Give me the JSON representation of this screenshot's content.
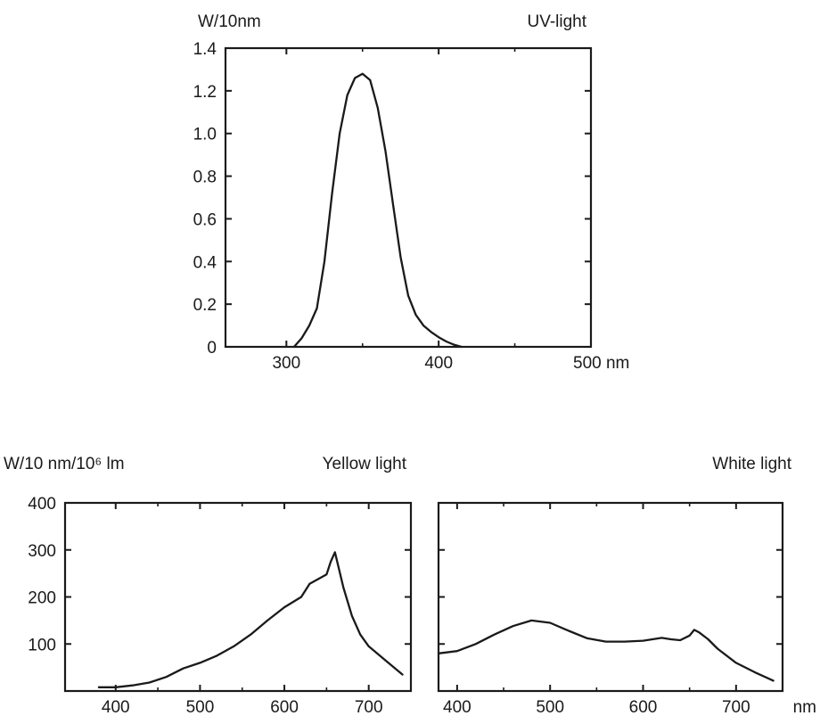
{
  "chart_data": [
    {
      "id": "uv",
      "type": "line",
      "title": "UV-light",
      "ylabel": "W/10nm",
      "xlabel": "nm",
      "xlim": [
        260,
        500
      ],
      "ylim": [
        0,
        1.4
      ],
      "xticks": [
        300,
        400,
        500
      ],
      "xtick_labels": [
        "300",
        "400",
        "500 nm"
      ],
      "yticks": [
        0,
        0.2,
        0.4,
        0.6,
        0.8,
        1.0,
        1.2,
        1.4
      ],
      "ytick_labels": [
        "0",
        "0.2",
        "0.4",
        "0.6",
        "0.8",
        "1.0",
        "1.2",
        "1.4"
      ],
      "grid": false,
      "x": [
        305,
        310,
        315,
        320,
        325,
        330,
        335,
        340,
        345,
        350,
        355,
        360,
        365,
        370,
        375,
        380,
        385,
        390,
        395,
        400,
        405,
        410,
        415
      ],
      "y": [
        0.0,
        0.04,
        0.1,
        0.18,
        0.4,
        0.72,
        1.0,
        1.18,
        1.26,
        1.28,
        1.25,
        1.12,
        0.92,
        0.67,
        0.42,
        0.24,
        0.15,
        0.1,
        0.07,
        0.045,
        0.025,
        0.01,
        0.0
      ]
    },
    {
      "id": "yellow",
      "type": "line",
      "title": "Yellow light",
      "ylabel": "W/10 nm/10⁶ lm",
      "xlim": [
        340,
        750
      ],
      "ylim": [
        0,
        400
      ],
      "xticks": [
        400,
        500,
        600,
        700
      ],
      "xtick_labels": [
        "400",
        "500",
        "600",
        "700"
      ],
      "yticks": [
        100,
        200,
        300,
        400
      ],
      "ytick_labels": [
        "100",
        "200",
        "300",
        "400"
      ],
      "grid": false,
      "x": [
        380,
        400,
        420,
        440,
        460,
        480,
        500,
        520,
        540,
        560,
        580,
        600,
        620,
        630,
        640,
        650,
        655,
        660,
        670,
        680,
        690,
        700,
        720,
        740
      ],
      "y": [
        8,
        8,
        12,
        18,
        30,
        48,
        60,
        75,
        95,
        120,
        150,
        178,
        200,
        228,
        238,
        248,
        275,
        295,
        220,
        160,
        120,
        95,
        65,
        35
      ]
    },
    {
      "id": "white",
      "type": "line",
      "title": "White light",
      "xlabel": "nm",
      "xlim": [
        380,
        750
      ],
      "ylim": [
        0,
        400
      ],
      "xticks": [
        400,
        500,
        600,
        700
      ],
      "xtick_labels": [
        "400",
        "500",
        "600",
        "700"
      ],
      "yticks": [
        100,
        200,
        300
      ],
      "grid": false,
      "x": [
        380,
        400,
        420,
        440,
        460,
        480,
        500,
        520,
        540,
        560,
        580,
        600,
        620,
        630,
        640,
        650,
        655,
        660,
        670,
        680,
        700,
        720,
        740
      ],
      "y": [
        80,
        85,
        100,
        120,
        138,
        150,
        145,
        128,
        112,
        105,
        105,
        107,
        113,
        110,
        108,
        118,
        130,
        125,
        110,
        90,
        60,
        40,
        22
      ]
    }
  ],
  "shared_xlabel": "nm",
  "colors": {
    "ink": "#1a1a1a",
    "background": "#ffffff"
  }
}
